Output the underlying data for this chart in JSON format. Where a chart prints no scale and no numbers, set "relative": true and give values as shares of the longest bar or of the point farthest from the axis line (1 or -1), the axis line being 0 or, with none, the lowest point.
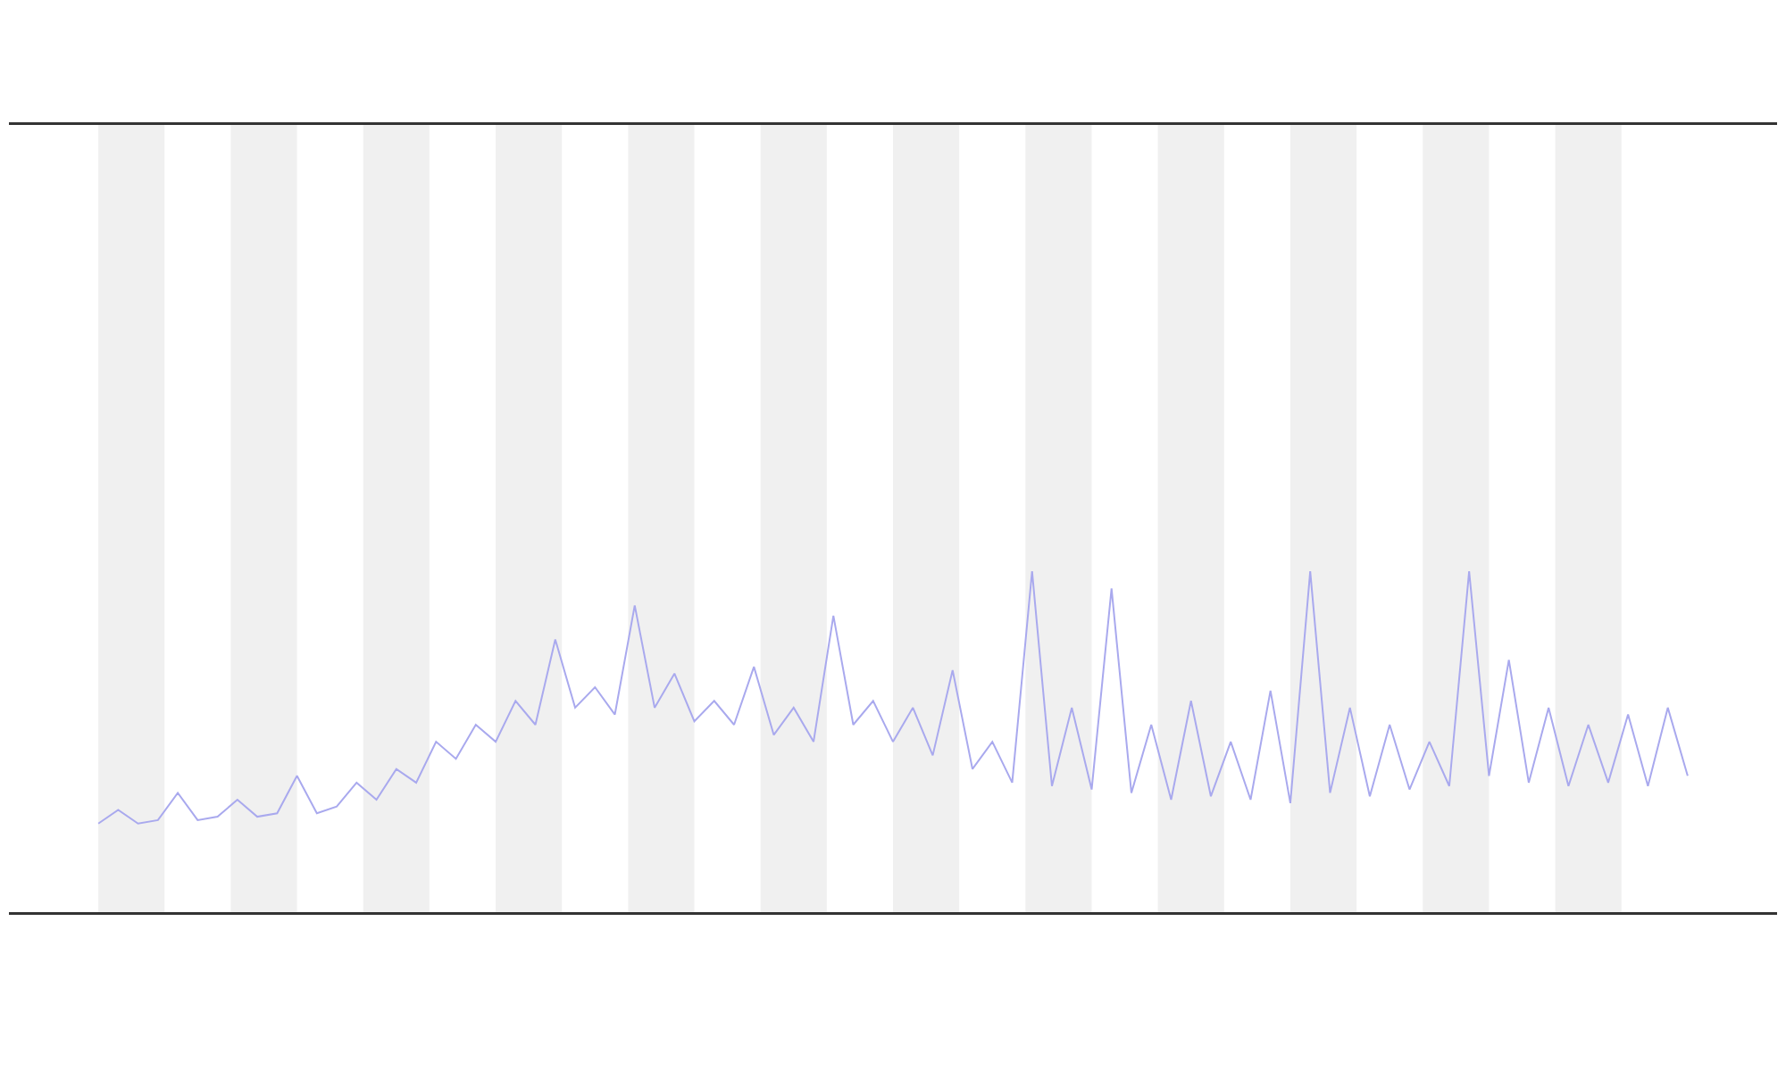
{
  "chart_data": {
    "type": "line",
    "relative": true,
    "marker": "none",
    "line_style": "solid",
    "categories": [
      null,
      null,
      null,
      null,
      null,
      null,
      null,
      null,
      null,
      null,
      null,
      null,
      null,
      null,
      null,
      null,
      null,
      null,
      null,
      null,
      null,
      null,
      null,
      null,
      null,
      null,
      null,
      null,
      null,
      null,
      null,
      null,
      null,
      null,
      null,
      null,
      null,
      null,
      null,
      null,
      null,
      null,
      null,
      null,
      null,
      null,
      null,
      null,
      null,
      null,
      null,
      null,
      null,
      null,
      null,
      null,
      null,
      null,
      null,
      null,
      null,
      null,
      null,
      null,
      null,
      null,
      null,
      null,
      null,
      null,
      null,
      null,
      null,
      null,
      null,
      null,
      null,
      null,
      null,
      null,
      null
    ],
    "series": [
      {
        "color": "#a9a9ee",
        "values": [
          0.26,
          0.3,
          0.26,
          0.27,
          0.35,
          0.27,
          0.28,
          0.33,
          0.28,
          0.29,
          0.4,
          0.29,
          0.31,
          0.38,
          0.33,
          0.42,
          0.38,
          0.5,
          0.45,
          0.55,
          0.5,
          0.62,
          0.55,
          0.8,
          0.6,
          0.66,
          0.58,
          0.9,
          0.6,
          0.7,
          0.56,
          0.62,
          0.55,
          0.72,
          0.52,
          0.6,
          0.5,
          0.87,
          0.55,
          0.62,
          0.5,
          0.6,
          0.46,
          0.71,
          0.42,
          0.5,
          0.38,
          1.0,
          0.37,
          0.6,
          0.36,
          0.95,
          0.35,
          0.55,
          0.33,
          0.62,
          0.34,
          0.5,
          0.33,
          0.65,
          0.32,
          1.0,
          0.35,
          0.6,
          0.34,
          0.55,
          0.36,
          0.5,
          0.37,
          1.0,
          0.4,
          0.74,
          0.38,
          0.6,
          0.37,
          0.55,
          0.38,
          0.58,
          0.37,
          0.6,
          0.4
        ]
      }
    ]
  }
}
